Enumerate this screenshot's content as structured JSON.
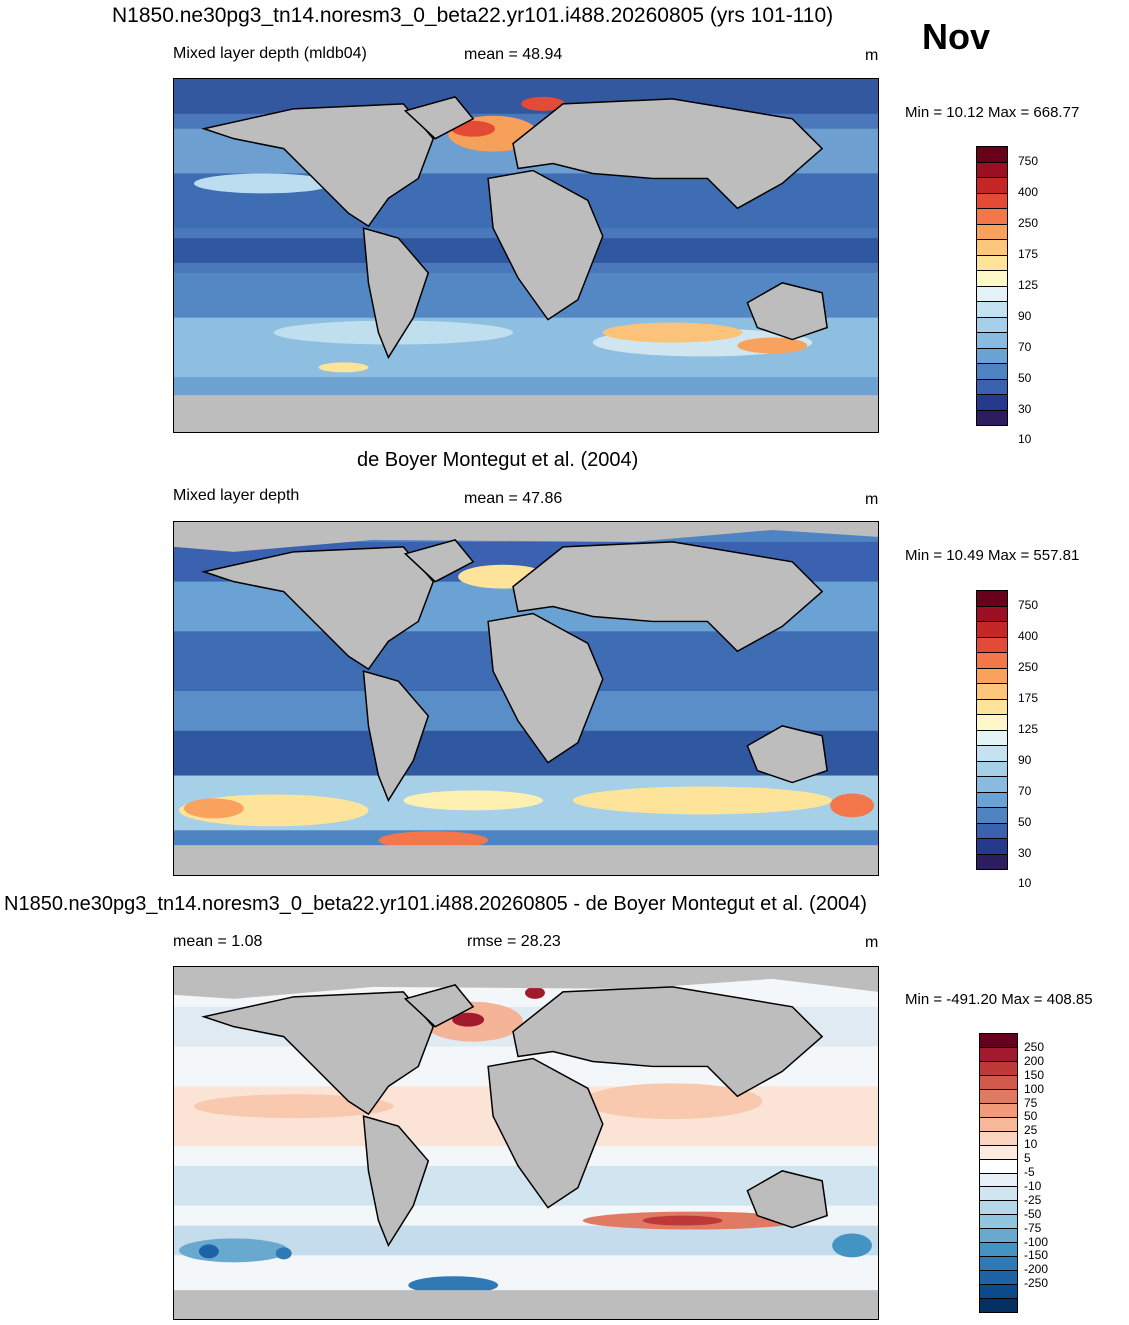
{
  "figure": {
    "title": "N1850.ne30pg3_tn14.noresm3_0_beta22.yr101.i488.20260805 (yrs 101-110)",
    "month": "Nov"
  },
  "panels": [
    {
      "subtitle": "Mixed layer depth (mldb04)",
      "stat": "mean =  48.94",
      "units": "m",
      "minmax": "Min =  10.12 Max = 668.77",
      "colorbar": {
        "colors": [
          "#2c1e5e",
          "#253a8c",
          "#3a62b0",
          "#4f84c2",
          "#6aa3d3",
          "#88bbdf",
          "#a6d0e8",
          "#c4e2ef",
          "#e4f3f5",
          "#fef7c7",
          "#fde49a",
          "#fdc77b",
          "#f9a25d",
          "#f3774a",
          "#e34b36",
          "#c52727",
          "#9b0f22",
          "#670019"
        ],
        "labels": [
          "750",
          "400",
          "250",
          "175",
          "125",
          "90",
          "70",
          "50",
          "30",
          "10"
        ]
      }
    },
    {
      "header": "de Boyer Montegut et al. (2004)",
      "subtitle": "Mixed layer depth",
      "stat": "mean =  47.86",
      "units": "m",
      "minmax": "Min =  10.49 Max = 557.81",
      "colorbar": {
        "colors": [
          "#2c1e5e",
          "#253a8c",
          "#3a62b0",
          "#4f84c2",
          "#6aa3d3",
          "#88bbdf",
          "#a6d0e8",
          "#c4e2ef",
          "#e4f3f5",
          "#fef7c7",
          "#fde49a",
          "#fdc77b",
          "#f9a25d",
          "#f3774a",
          "#e34b36",
          "#c52727",
          "#9b0f22",
          "#670019"
        ],
        "labels": [
          "750",
          "400",
          "250",
          "175",
          "125",
          "90",
          "70",
          "50",
          "30",
          "10"
        ]
      }
    },
    {
      "header": "N1850.ne30pg3_tn14.noresm3_0_beta22.yr101.i488.20260805 - de Boyer Montegut et al. (2004)",
      "subtitle": "mean =   1.08",
      "stat": "rmse =  28.23",
      "units": "m",
      "minmax": "Min = -491.20 Max = 408.85",
      "colorbar": {
        "colors": [
          "#053061",
          "#0d4a8b",
          "#1e63a6",
          "#2f79b5",
          "#4393c3",
          "#6aa9cf",
          "#92c5de",
          "#b6d7e8",
          "#d1e5f0",
          "#e8f1f7",
          "#ffffff",
          "#fdebe0",
          "#fbd4bf",
          "#f7b799",
          "#f09a7a",
          "#e17a63",
          "#d15a4d",
          "#be3a3a",
          "#a11a2e",
          "#67001f"
        ],
        "labels": [
          "250",
          "200",
          "150",
          "100",
          "75",
          "50",
          "25",
          "10",
          "5",
          "-5",
          "-10",
          "-25",
          "-50",
          "-75",
          "-100",
          "-150",
          "-200",
          "-250"
        ]
      }
    }
  ]
}
